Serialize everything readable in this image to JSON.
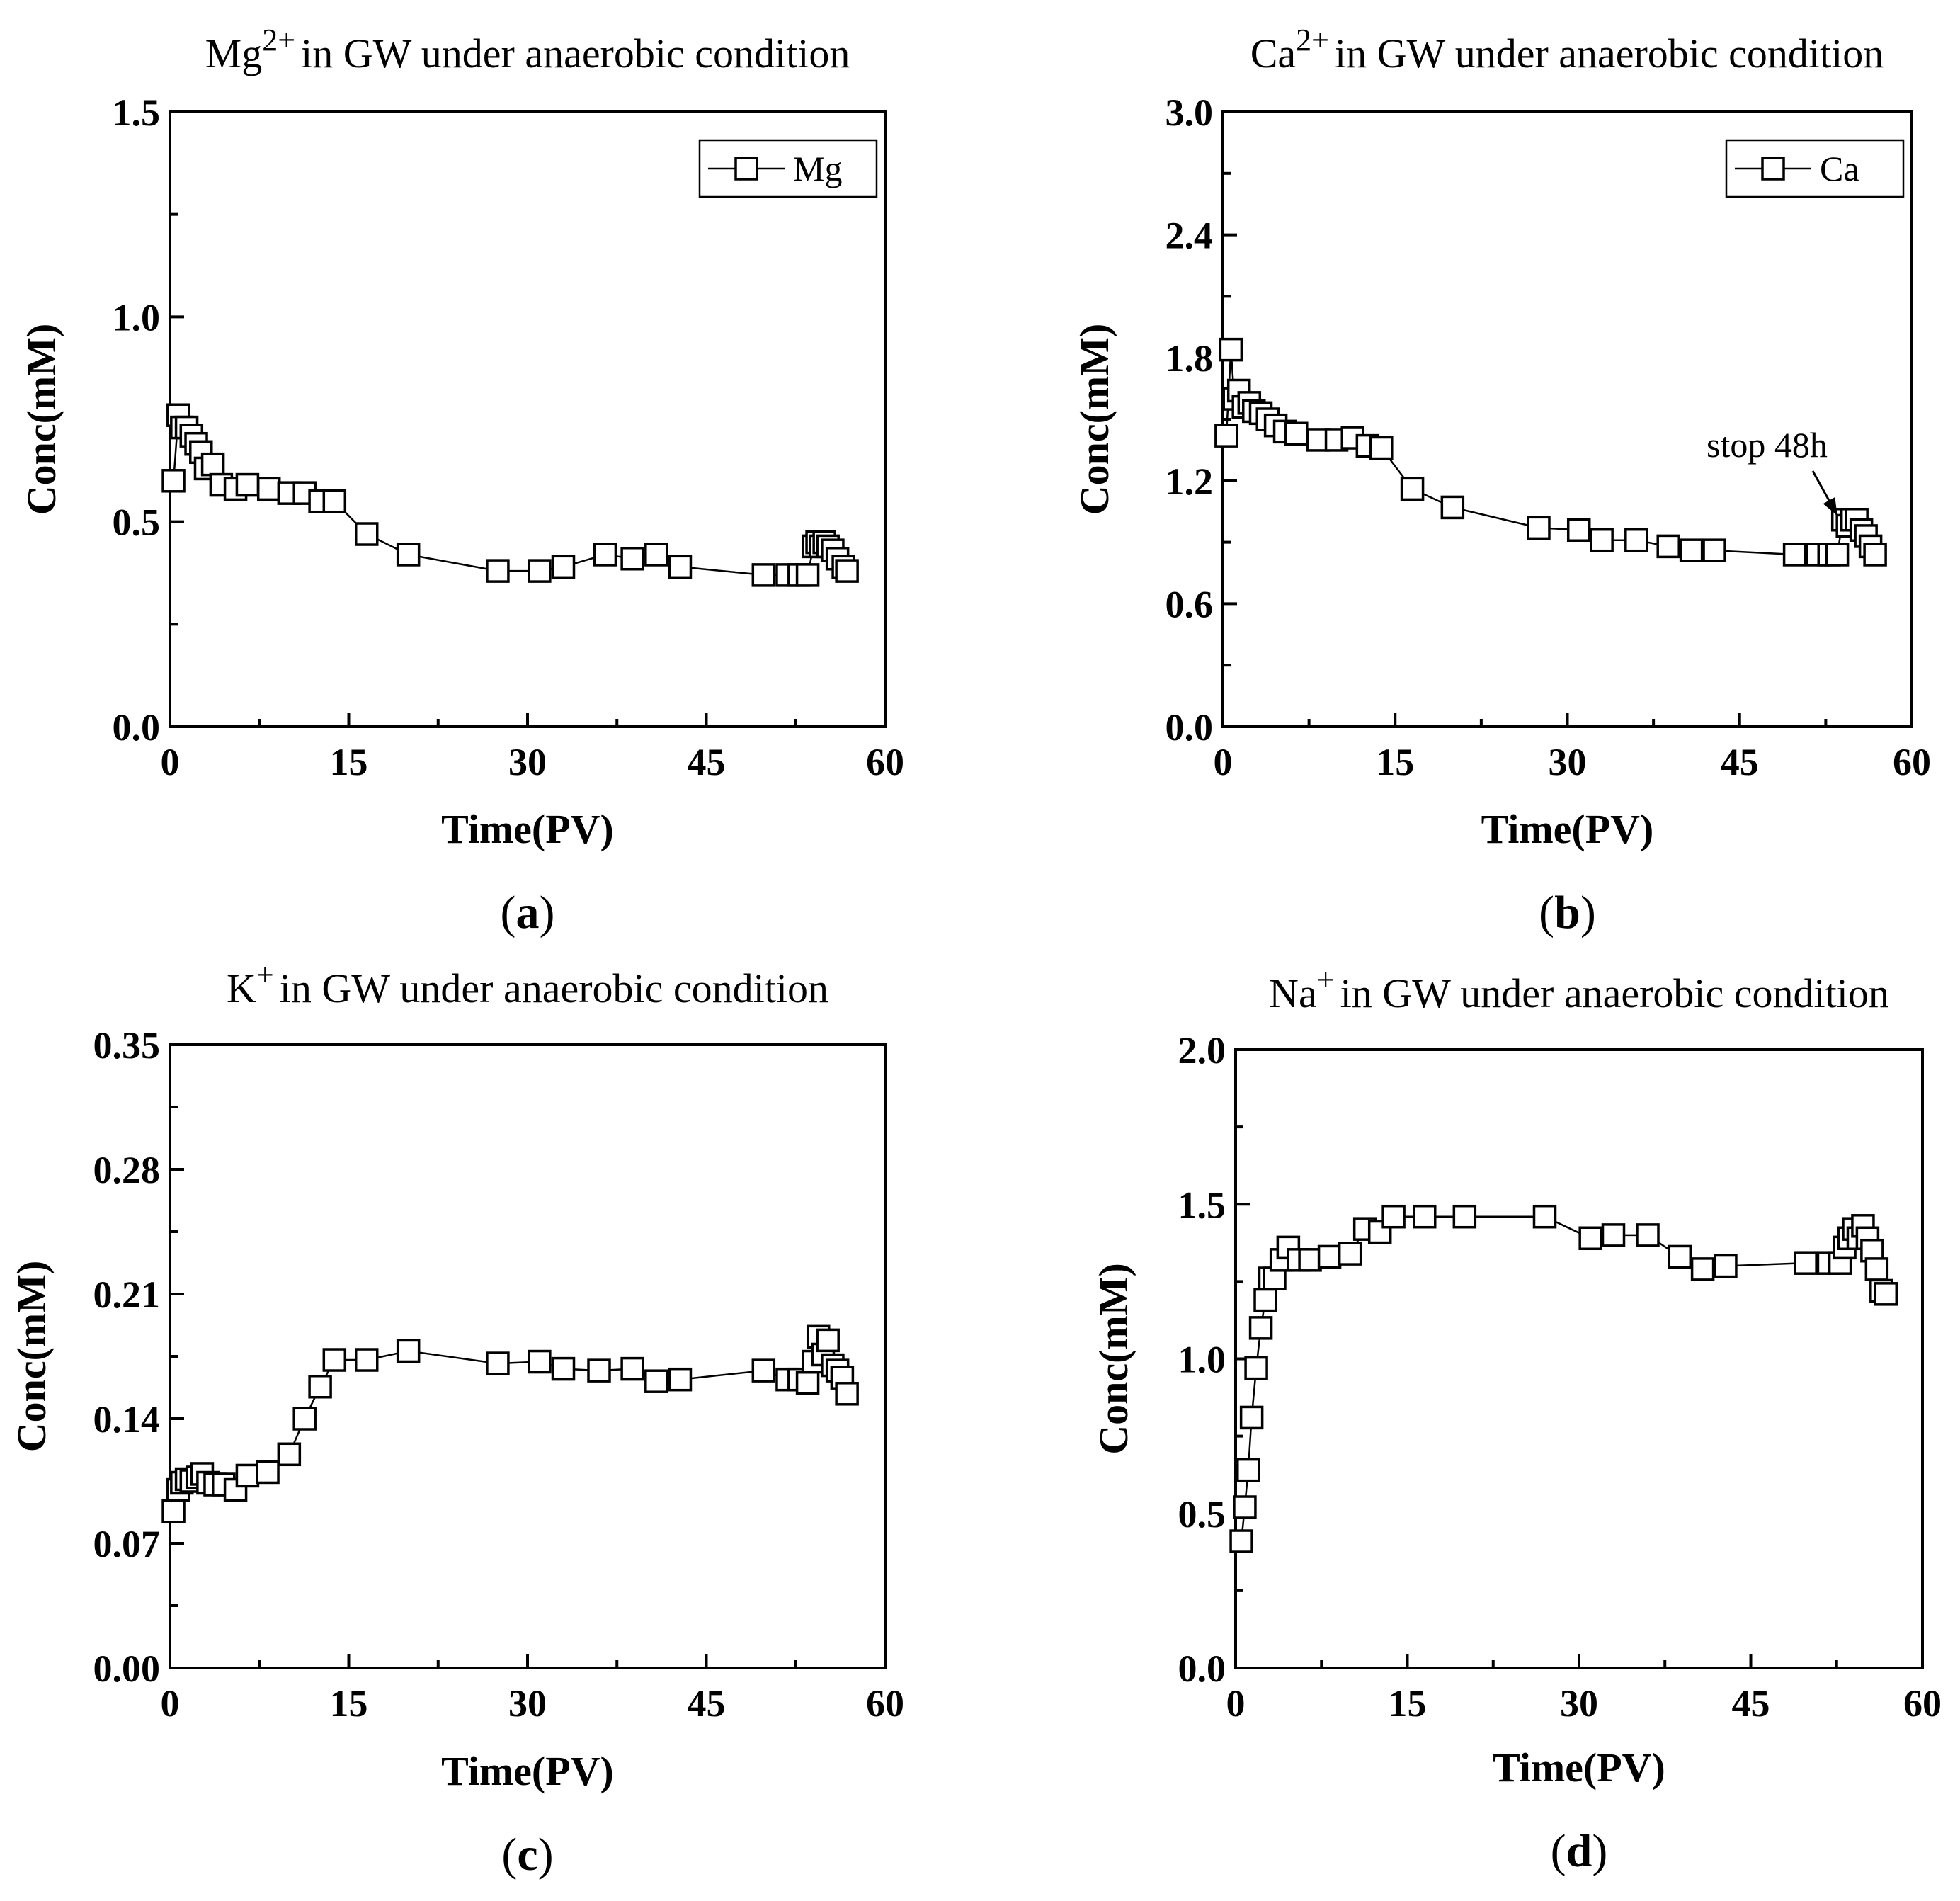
{
  "chart_data": [
    {
      "type": "line",
      "title": "in GW under anaerobic condition",
      "title_ion": "Mg",
      "title_charge": "2+",
      "xlabel": "Time(PV)",
      "ylabel": "Conc(mM)",
      "panel_open": "(",
      "panel_letter": "a",
      "panel_close": ")",
      "xlim": [
        0,
        60
      ],
      "ylim": [
        0,
        1.5
      ],
      "xticks": [
        "0",
        "15",
        "30",
        "45",
        "60"
      ],
      "yticks": [
        "0.0",
        "0.5",
        "1.0",
        "1.5"
      ],
      "legend": [
        "Mg"
      ],
      "series": [
        {
          "name": "Mg",
          "x": [
            0.3,
            0.7,
            1.0,
            1.4,
            1.8,
            2.2,
            2.6,
            3.0,
            3.6,
            4.3,
            5.5,
            6.5,
            8.3,
            10.0,
            11.3,
            12.6,
            13.8,
            16.5,
            20.0,
            27.5,
            31.0,
            33.0,
            36.5,
            38.8,
            40.8,
            42.8,
            49.8,
            51.8,
            52.8,
            53.5,
            54.0,
            54.3,
            54.6,
            54.9,
            55.2,
            55.6,
            56.0,
            56.5,
            56.8
          ],
          "y": [
            0.6,
            0.76,
            0.73,
            0.73,
            0.71,
            0.69,
            0.67,
            0.63,
            0.64,
            0.59,
            0.58,
            0.59,
            0.58,
            0.57,
            0.57,
            0.55,
            0.55,
            0.47,
            0.42,
            0.38,
            0.38,
            0.39,
            0.42,
            0.41,
            0.42,
            0.39,
            0.37,
            0.37,
            0.37,
            0.37,
            0.44,
            0.45,
            0.44,
            0.45,
            0.44,
            0.43,
            0.41,
            0.39,
            0.38
          ]
        }
      ]
    },
    {
      "type": "line",
      "title": "in GW under anaerobic condition",
      "title_ion": "Ca",
      "title_charge": "2+",
      "xlabel": "Time(PV)",
      "ylabel": "Conc(mM)",
      "panel_open": "(",
      "panel_letter": "b",
      "panel_close": ")",
      "xlim": [
        0,
        60
      ],
      "ylim": [
        0,
        3.0
      ],
      "xticks": [
        "0",
        "15",
        "30",
        "45",
        "60"
      ],
      "yticks": [
        "0.0",
        "0.6",
        "1.2",
        "1.8",
        "2.4",
        "3.0"
      ],
      "legend": [
        "Ca"
      ],
      "annotation": "stop 48h",
      "series": [
        {
          "name": "Ca",
          "x": [
            0.3,
            0.7,
            1.0,
            1.4,
            1.8,
            2.3,
            2.7,
            3.3,
            3.9,
            4.6,
            5.4,
            6.4,
            8.3,
            9.9,
            11.3,
            12.6,
            13.8,
            16.5,
            20.0,
            27.5,
            31.0,
            33.0,
            36.0,
            38.8,
            40.8,
            42.8,
            49.8,
            51.8,
            52.8,
            53.5,
            54.0,
            54.4,
            54.8,
            55.2,
            55.6,
            56.0,
            56.4,
            56.8
          ],
          "y": [
            1.42,
            1.84,
            1.6,
            1.64,
            1.56,
            1.58,
            1.54,
            1.53,
            1.5,
            1.47,
            1.44,
            1.43,
            1.4,
            1.4,
            1.41,
            1.37,
            1.36,
            1.16,
            1.07,
            0.97,
            0.96,
            0.91,
            0.91,
            0.88,
            0.86,
            0.86,
            0.84,
            0.84,
            0.84,
            0.84,
            1.01,
            0.98,
            1.01,
            1.01,
            0.96,
            0.93,
            0.88,
            0.84
          ]
        }
      ]
    },
    {
      "type": "line",
      "title": "in GW under anaerobic condition",
      "title_ion": "K",
      "title_charge": "+",
      "xlabel": "Time(PV)",
      "ylabel": "Conc(mM)",
      "panel_open": "(",
      "panel_letter": "c",
      "panel_close": ")",
      "xlim": [
        0,
        60
      ],
      "ylim": [
        0,
        0.35
      ],
      "xticks": [
        "0",
        "15",
        "30",
        "45",
        "60"
      ],
      "yticks": [
        "0.00",
        "0.07",
        "0.14",
        "0.21",
        "0.28",
        "0.35"
      ],
      "series": [
        {
          "name": "K",
          "x": [
            0.3,
            0.7,
            1.0,
            1.4,
            1.8,
            2.3,
            2.7,
            3.2,
            3.8,
            4.5,
            5.5,
            6.5,
            8.2,
            10.0,
            11.3,
            12.6,
            13.8,
            16.5,
            20.0,
            27.5,
            31.0,
            33.0,
            36.0,
            38.8,
            40.8,
            42.8,
            49.8,
            51.8,
            52.8,
            53.5,
            54.0,
            54.4,
            54.8,
            55.2,
            55.6,
            56.0,
            56.4,
            56.8
          ],
          "y": [
            0.088,
            0.1,
            0.104,
            0.106,
            0.105,
            0.107,
            0.109,
            0.104,
            0.103,
            0.103,
            0.1,
            0.108,
            0.11,
            0.12,
            0.14,
            0.158,
            0.173,
            0.173,
            0.178,
            0.171,
            0.172,
            0.168,
            0.167,
            0.168,
            0.161,
            0.162,
            0.167,
            0.162,
            0.162,
            0.16,
            0.172,
            0.186,
            0.176,
            0.184,
            0.17,
            0.167,
            0.163,
            0.154
          ]
        }
      ]
    },
    {
      "type": "line",
      "title": "in GW under anaerobic condition",
      "title_ion": "Na",
      "title_charge": "+",
      "xlabel": "Time(PV)",
      "ylabel": "Conc(mM)",
      "panel_open": "(",
      "panel_letter": "d",
      "panel_close": ")",
      "xlim": [
        0,
        60
      ],
      "ylim": [
        0,
        2.0
      ],
      "xticks": [
        "0",
        "15",
        "30",
        "45",
        "60"
      ],
      "yticks": [
        "0.0",
        "0.5",
        "1.0",
        "1.5",
        "2.0"
      ],
      "series": [
        {
          "name": "Na",
          "x": [
            0.5,
            0.8,
            1.1,
            1.4,
            1.8,
            2.2,
            2.6,
            3.0,
            3.4,
            4.0,
            4.6,
            5.5,
            6.5,
            8.2,
            10.0,
            11.3,
            12.6,
            13.8,
            16.5,
            20.0,
            27.0,
            31.0,
            33.0,
            36.0,
            38.8,
            40.8,
            42.8,
            49.8,
            51.8,
            52.8,
            53.2,
            53.6,
            54.0,
            54.4,
            54.8,
            55.2,
            55.6,
            56.0,
            56.4,
            56.8
          ],
          "y": [
            0.41,
            0.52,
            0.64,
            0.81,
            0.97,
            1.1,
            1.19,
            1.26,
            1.26,
            1.32,
            1.36,
            1.32,
            1.32,
            1.33,
            1.34,
            1.42,
            1.41,
            1.46,
            1.46,
            1.46,
            1.46,
            1.39,
            1.4,
            1.4,
            1.33,
            1.29,
            1.3,
            1.31,
            1.31,
            1.31,
            1.36,
            1.39,
            1.42,
            1.39,
            1.43,
            1.39,
            1.35,
            1.29,
            1.22,
            1.21
          ]
        }
      ]
    }
  ]
}
